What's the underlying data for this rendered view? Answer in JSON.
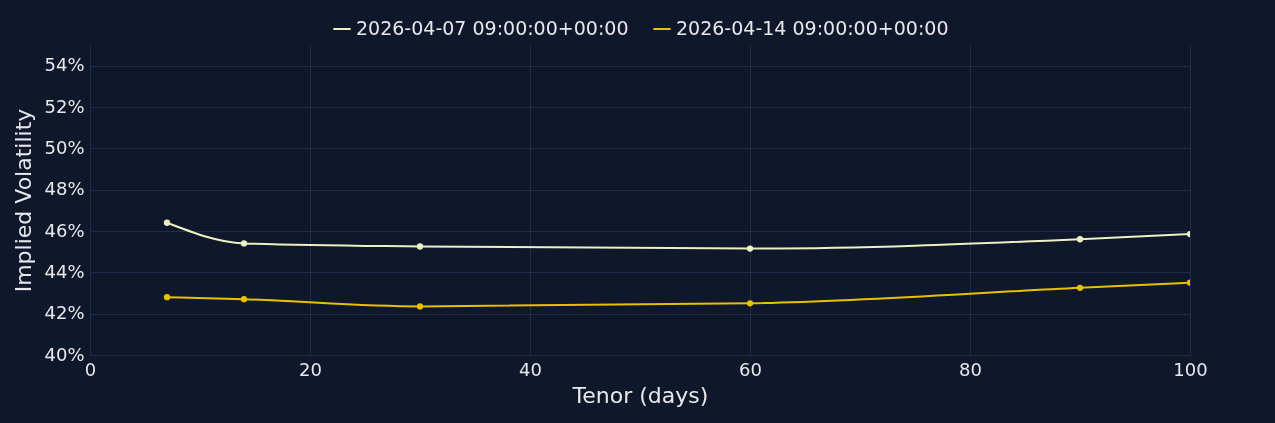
{
  "chart_data": {
    "type": "line",
    "xlabel": "Tenor (days)",
    "ylabel": "Implied Volatility",
    "x": [
      7,
      14,
      30,
      60,
      90,
      100
    ],
    "series": [
      {
        "name": "2026-04-07 09:00:00+00:00",
        "color": "#eef0c4",
        "values": [
          46.4,
          45.4,
          45.25,
          45.15,
          45.6,
          45.85
        ]
      },
      {
        "name": "2026-04-14 09:00:00+00:00",
        "color": "#e8c000",
        "values": [
          42.8,
          42.7,
          42.35,
          42.5,
          43.25,
          43.5
        ]
      }
    ],
    "xlim": [
      0,
      100
    ],
    "xticks": [
      0,
      20,
      40,
      60,
      80,
      100
    ],
    "ylim": [
      40,
      55
    ],
    "yticks": [
      {
        "value": 40,
        "label": "40%"
      },
      {
        "value": 42,
        "label": "42%"
      },
      {
        "value": 44,
        "label": "44%"
      },
      {
        "value": 46,
        "label": "46%"
      },
      {
        "value": 48,
        "label": "48%"
      },
      {
        "value": 50,
        "label": "50%"
      },
      {
        "value": 52,
        "label": "52%"
      },
      {
        "value": 54,
        "label": "54%"
      }
    ],
    "grid": true,
    "legend": "top",
    "marker": "circle",
    "line_style": "solid"
  }
}
